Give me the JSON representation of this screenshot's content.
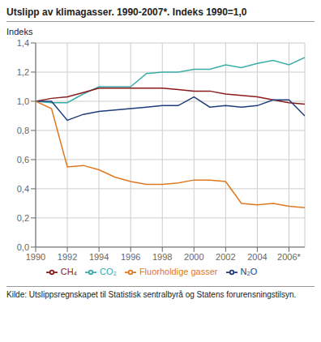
{
  "chart_data": {
    "type": "line",
    "title": "Utslipp av klimagasser. 1990-2007*. Indeks 1990=1,0",
    "ylabel": "Indeks",
    "source": "Kilde: Utslippsregnskapet til Statistisk sentralbyrå og Statens forurensningstilsyn.",
    "x": [
      1990,
      1991,
      1992,
      1993,
      1994,
      1995,
      1996,
      1997,
      1998,
      1999,
      2000,
      2001,
      2002,
      2003,
      2004,
      2005,
      2006,
      2007
    ],
    "series": [
      {
        "name": "CO₂",
        "color": "#3aada8",
        "values": [
          1.0,
          0.99,
          0.99,
          1.05,
          1.1,
          1.1,
          1.1,
          1.19,
          1.2,
          1.2,
          1.22,
          1.22,
          1.25,
          1.23,
          1.26,
          1.28,
          1.25,
          1.3
        ]
      },
      {
        "name": "CH₄",
        "color": "#8b1a1a",
        "values": [
          1.0,
          1.02,
          1.03,
          1.06,
          1.09,
          1.09,
          1.09,
          1.09,
          1.09,
          1.08,
          1.07,
          1.07,
          1.05,
          1.04,
          1.03,
          1.01,
          0.99,
          0.98
        ]
      },
      {
        "name": "N₂O",
        "color": "#1f3d7a",
        "values": [
          1.0,
          1.0,
          0.87,
          0.91,
          0.93,
          0.94,
          0.95,
          0.96,
          0.97,
          0.97,
          1.03,
          0.96,
          0.97,
          0.96,
          0.97,
          1.01,
          1.01,
          0.9
        ]
      },
      {
        "name": "Fluorholdige gasser",
        "color": "#e07820",
        "values": [
          1.0,
          0.95,
          0.55,
          0.56,
          0.53,
          0.48,
          0.45,
          0.43,
          0.43,
          0.44,
          0.46,
          0.46,
          0.45,
          0.3,
          0.29,
          0.3,
          0.28,
          0.27
        ]
      }
    ],
    "xlim": [
      1990,
      2007
    ],
    "xticks": [
      1990,
      1992,
      1994,
      1996,
      1998,
      2000,
      2002,
      2004,
      {
        "value": 2006,
        "label": "2006*"
      }
    ],
    "ylim": [
      0.0,
      1.4
    ],
    "yticks": [
      {
        "value": 0.0,
        "label": "0,0"
      },
      {
        "value": 0.2,
        "label": "0,2"
      },
      {
        "value": 0.4,
        "label": "0,4"
      },
      {
        "value": 0.6,
        "label": "0,6"
      },
      {
        "value": 0.8,
        "label": "0,8"
      },
      {
        "value": 1.0,
        "label": "1,0"
      },
      {
        "value": 1.2,
        "label": "1,2"
      },
      {
        "value": 1.4,
        "label": "1,4"
      }
    ],
    "grid": true,
    "legend": "bottom"
  }
}
